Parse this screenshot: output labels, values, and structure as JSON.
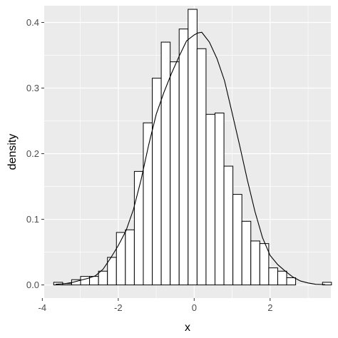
{
  "chart_data": {
    "type": "bar",
    "title": "",
    "xlabel": "x",
    "ylabel": "density",
    "xlim": [
      -3.95,
      3.6
    ],
    "ylim": [
      -0.02,
      0.4255
    ],
    "x_ticks": [
      -4,
      -2,
      0,
      2
    ],
    "x_tick_labels": [
      "-4",
      "-2",
      "0",
      "2"
    ],
    "y_ticks": [
      0,
      0.1,
      0.2,
      0.3,
      0.4
    ],
    "y_tick_labels": [
      "0.0",
      "0.1",
      "0.2",
      "0.3",
      "0.4"
    ],
    "grid": true,
    "legend": "none",
    "histogram": {
      "bin_width": 0.236,
      "bin_left_edges": [
        -3.7,
        -3.464,
        -3.228,
        -2.992,
        -2.756,
        -2.52,
        -2.284,
        -2.048,
        -1.812,
        -1.576,
        -1.34,
        -1.104,
        -0.868,
        -0.632,
        -0.396,
        -0.16,
        0.076,
        0.312,
        0.548,
        0.784,
        1.02,
        1.256,
        1.492,
        1.728,
        1.964,
        2.2,
        2.436,
        2.672,
        2.908,
        3.144,
        3.38
      ],
      "density": [
        0.004,
        0.002,
        0.008,
        0.013,
        0.013,
        0.021,
        0.042,
        0.08,
        0.084,
        0.173,
        0.247,
        0.315,
        0.37,
        0.34,
        0.39,
        0.42,
        0.36,
        0.26,
        0.262,
        0.181,
        0.138,
        0.097,
        0.067,
        0.063,
        0.026,
        0.021,
        0.011,
        0.0,
        0.0,
        0.0,
        0.004
      ]
    },
    "density_curve": {
      "x": [
        -3.65,
        -3.4,
        -3.2,
        -3.0,
        -2.8,
        -2.6,
        -2.4,
        -2.2,
        -2.0,
        -1.8,
        -1.6,
        -1.4,
        -1.2,
        -1.0,
        -0.8,
        -0.6,
        -0.4,
        -0.2,
        0.0,
        0.1,
        0.2,
        0.4,
        0.6,
        0.8,
        1.0,
        1.2,
        1.4,
        1.6,
        1.8,
        2.0,
        2.2,
        2.4,
        2.6,
        2.8,
        3.0,
        3.2,
        3.45
      ],
      "y": [
        0.001,
        0.002,
        0.004,
        0.007,
        0.01,
        0.014,
        0.024,
        0.041,
        0.06,
        0.082,
        0.115,
        0.16,
        0.213,
        0.26,
        0.293,
        0.322,
        0.348,
        0.372,
        0.381,
        0.384,
        0.385,
        0.37,
        0.345,
        0.311,
        0.262,
        0.212,
        0.16,
        0.112,
        0.072,
        0.045,
        0.031,
        0.021,
        0.012,
        0.006,
        0.003,
        0.001,
        0.0005
      ]
    }
  }
}
